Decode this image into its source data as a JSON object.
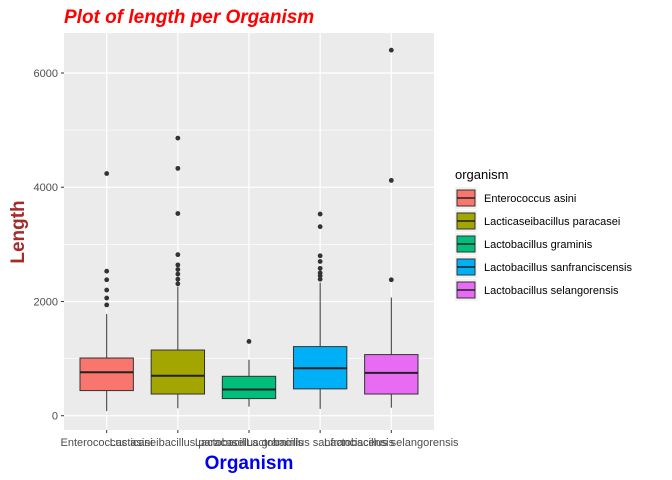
{
  "chart_data": {
    "type": "box",
    "title": "Plot of length per Organism",
    "xlabel": "Organism",
    "ylabel": "Length",
    "ylim": [
      -250,
      6700
    ],
    "yticks": [
      0,
      2000,
      4000,
      6000
    ],
    "grid": true,
    "legend": {
      "title": "organism",
      "position": "right"
    },
    "categories": [
      "Enterococcus asini",
      "Lacticaseibacillus paracasei",
      "Lactobacillus graminis",
      "Lactobacillus sanfranciscensis",
      "Lactobacillus selangorensis"
    ],
    "series": [
      {
        "name": "Enterococcus asini",
        "color": "#F8766D",
        "min": 80,
        "q1": 440,
        "median": 760,
        "q3": 1010,
        "max": 1780,
        "outliers": [
          1940,
          2060,
          2200,
          2380,
          2530,
          4240
        ]
      },
      {
        "name": "Lacticaseibacillus paracasei",
        "color": "#A3A500",
        "min": 130,
        "q1": 380,
        "median": 700,
        "q3": 1150,
        "max": 2260,
        "outliers": [
          2310,
          2390,
          2480,
          2560,
          2640,
          2820,
          3540,
          4330,
          4860
        ]
      },
      {
        "name": "Lactobacillus graminis",
        "color": "#00BF7D",
        "min": 160,
        "q1": 300,
        "median": 460,
        "q3": 690,
        "max": 980,
        "outliers": [
          1300
        ]
      },
      {
        "name": "Lactobacillus sanfranciscensis",
        "color": "#00B0F6",
        "min": 120,
        "q1": 470,
        "median": 830,
        "q3": 1210,
        "max": 2330,
        "outliers": [
          2390,
          2450,
          2500,
          2580,
          2700,
          2800,
          3310,
          3530
        ]
      },
      {
        "name": "Lactobacillus selangorensis",
        "color": "#E76BF3",
        "min": 140,
        "q1": 380,
        "median": 750,
        "q3": 1070,
        "max": 2070,
        "outliers": [
          2380,
          4120,
          6400
        ]
      }
    ]
  }
}
